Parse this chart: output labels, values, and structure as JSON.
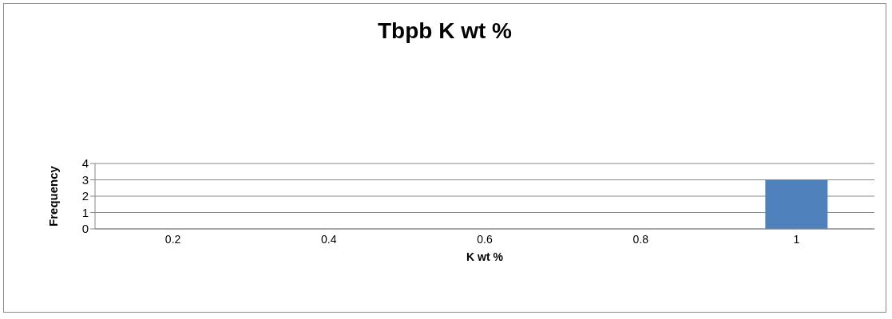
{
  "chart_data": {
    "type": "bar",
    "title": "Tbpb K wt %",
    "xlabel": "K wt %",
    "ylabel": "Frequency",
    "categories": [
      "0.2",
      "0.4",
      "0.6",
      "0.8",
      "1"
    ],
    "values": [
      0,
      0,
      0,
      0,
      3
    ],
    "color": "#4f81bd",
    "ylim": [
      0,
      4
    ],
    "yticks": [
      0,
      1,
      2,
      3,
      4
    ],
    "grid": "y"
  }
}
